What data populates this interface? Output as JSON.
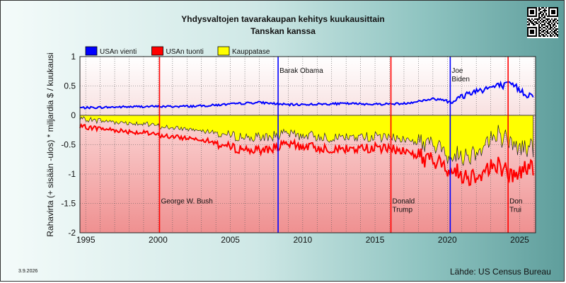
{
  "date_label": "3.9.2026",
  "source_label": "Lähde: US Census Bureau",
  "colors": {
    "exports": "#0000ff",
    "imports": "#ff0000",
    "balance": "#ffff00",
    "bush": "#ff0000",
    "obama": "#0000ff",
    "trump": "#ff0000",
    "biden": "#0000ff"
  },
  "chart_data": {
    "type": "line",
    "title": "Yhdysvaltojen tavarakaupan kehitys kuukausittain",
    "subtitle": "Tanskan kanssa",
    "ylabel": "Rahavirta (+ sisään -ulos) * miljardia $ / kuukausi",
    "xlabel": "",
    "xlim": [
      1994.6,
      2026.1
    ],
    "ylim": [
      -2,
      1
    ],
    "yticks": [
      "1",
      "0.5",
      "0",
      "-0.5",
      "-1",
      "-1.5",
      "-2"
    ],
    "xticks": [
      "1995",
      "2000",
      "2005",
      "2010",
      "2015",
      "2020",
      "2025"
    ],
    "legend_position": "top-left",
    "grid": true,
    "series": [
      {
        "name": "USAn vienti",
        "color": "#0000ff",
        "x": [
          1995,
          1997,
          1999,
          2001,
          2003,
          2005,
          2007,
          2009,
          2011,
          2013,
          2015,
          2017,
          2019,
          2020.5,
          2021.5,
          2022.5,
          2023.5,
          2024.5,
          2025.5
        ],
        "values": [
          0.13,
          0.14,
          0.15,
          0.15,
          0.16,
          0.19,
          0.22,
          0.18,
          0.19,
          0.2,
          0.19,
          0.2,
          0.28,
          0.25,
          0.38,
          0.45,
          0.5,
          0.52,
          0.35
        ]
      },
      {
        "name": "USAn tuonti",
        "color": "#ff0000",
        "x": [
          1995,
          1997,
          1999,
          2001,
          2003,
          2005,
          2007,
          2009,
          2011,
          2013,
          2015,
          2017,
          2019,
          2020.5,
          2021.5,
          2022.5,
          2023.5,
          2024.5,
          2025.5
        ],
        "values": [
          -0.2,
          -0.25,
          -0.3,
          -0.37,
          -0.4,
          -0.55,
          -0.6,
          -0.5,
          -0.55,
          -0.58,
          -0.55,
          -0.6,
          -0.78,
          -0.95,
          -1.05,
          -0.95,
          -0.82,
          -1.05,
          -0.88
        ]
      },
      {
        "name": "Kauppatase",
        "color": "#ffff00",
        "x": [
          1995,
          1997,
          1999,
          2001,
          2003,
          2005,
          2007,
          2009,
          2011,
          2013,
          2015,
          2017,
          2019,
          2020.5,
          2021.5,
          2022.5,
          2023.5,
          2024.5,
          2025.5
        ],
        "values": [
          -0.07,
          -0.11,
          -0.15,
          -0.22,
          -0.24,
          -0.36,
          -0.38,
          -0.32,
          -0.36,
          -0.38,
          -0.36,
          -0.4,
          -0.5,
          -0.7,
          -0.67,
          -0.5,
          -0.32,
          -0.53,
          -0.53
        ]
      }
    ],
    "annotations": [
      {
        "label": [
          "George W. Bush"
        ],
        "x": 2000.1,
        "y": -1.5,
        "color": "#ff0000"
      },
      {
        "label": [
          "Barak Obama"
        ],
        "x": 2008.3,
        "y": 0.72,
        "color": "#0000ff"
      },
      {
        "label": [
          "Donald",
          "Trump"
        ],
        "x": 2016.1,
        "y": -1.5,
        "color": "#ff0000"
      },
      {
        "label": [
          "Joe",
          "Biden"
        ],
        "x": 2020.2,
        "y": 0.72,
        "color": "#0000ff"
      },
      {
        "label": [
          "Don",
          "Trui"
        ],
        "x": 2024.2,
        "y": -1.5,
        "color": "#ff0000"
      }
    ]
  }
}
